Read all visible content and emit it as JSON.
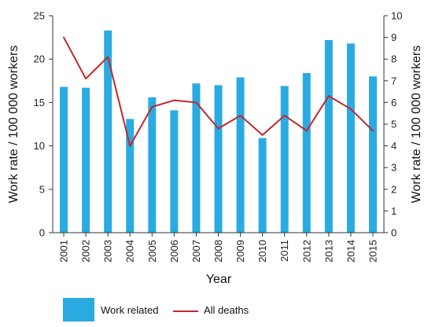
{
  "chart_data": {
    "type": "bar",
    "categories": [
      "2001",
      "2002",
      "2003",
      "2004",
      "2005",
      "2006",
      "2007",
      "2008",
      "2009",
      "2010",
      "2011",
      "2012",
      "2013",
      "2014",
      "2015"
    ],
    "series": [
      {
        "name": "Work related",
        "type": "bar",
        "axis": "left",
        "color": "#29abe2",
        "values": [
          16.8,
          16.7,
          23.3,
          13.1,
          15.6,
          14.1,
          17.2,
          17.0,
          17.9,
          10.9,
          16.9,
          18.4,
          22.2,
          21.8,
          18.0
        ]
      },
      {
        "name": "All deaths",
        "type": "line",
        "axis": "right",
        "color": "#c1272d",
        "values": [
          9.0,
          7.1,
          8.1,
          4.0,
          5.8,
          6.1,
          6.0,
          4.8,
          5.4,
          4.5,
          5.4,
          4.7,
          6.3,
          5.7,
          4.7
        ]
      }
    ],
    "xlabel": "Year",
    "ylabel": "Work rate / 100 000 workers",
    "y2label": "Work rate / 100 000 workers",
    "ylim": [
      0,
      25
    ],
    "y2lim": [
      0,
      10
    ],
    "yticks": [
      "0",
      "5",
      "10",
      "15",
      "20",
      "25"
    ],
    "y2ticks": [
      "0",
      "1",
      "2",
      "3",
      "4",
      "5",
      "6",
      "7",
      "8",
      "9",
      "10"
    ],
    "grid": false,
    "legend_placement": "bottom-left"
  }
}
